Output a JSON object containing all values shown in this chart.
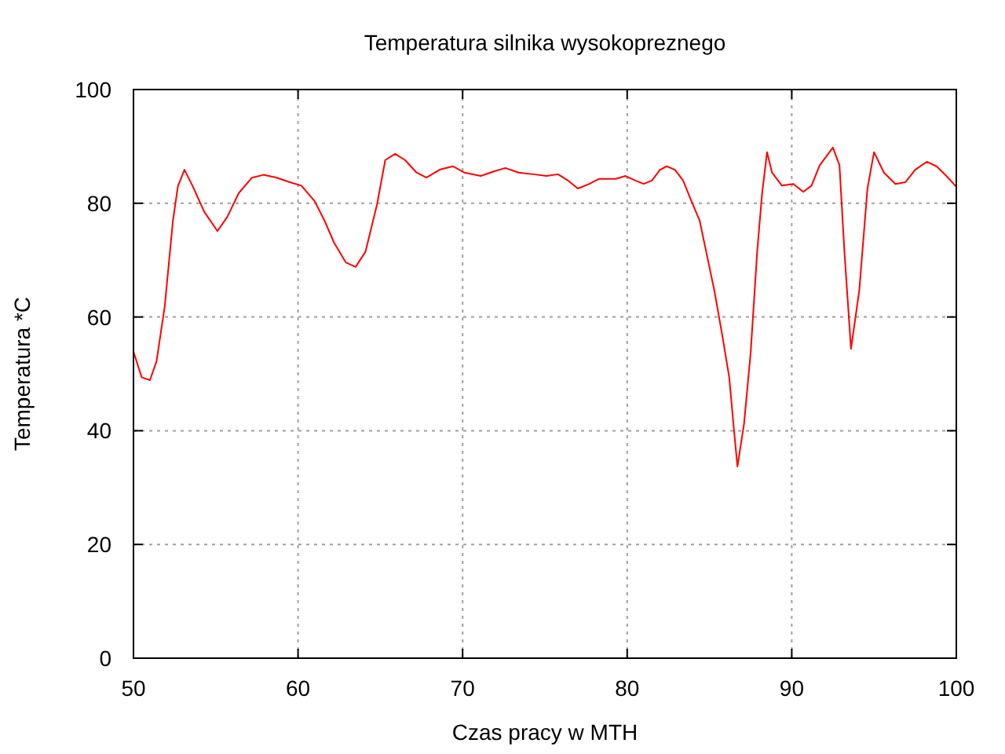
{
  "chart_data": {
    "type": "line",
    "title": "Temperatura silnika wysokopreznego",
    "xlabel": "Czas pracy w MTH",
    "ylabel": "Temperatura *C",
    "xlim": [
      50,
      100
    ],
    "xticks": [
      50,
      60,
      70,
      80,
      90,
      100
    ],
    "ylim": [
      0,
      100
    ],
    "yticks": [
      0,
      20,
      40,
      60,
      80,
      100
    ],
    "grid": true,
    "line_style": "solid",
    "marker": "none",
    "series": [
      {
        "color": "#ff0000",
        "x": [
          50,
          50.5,
          51,
          51.4,
          51.9,
          52.4,
          52.7,
          53.1,
          53.6,
          54.3,
          55.1,
          55.7,
          56.4,
          57.2,
          57.9,
          58.7,
          59.5,
          60.2,
          61,
          61.6,
          62.2,
          62.9,
          63.5,
          64.1,
          64.8,
          65.3,
          65.9,
          66.5,
          67.2,
          67.8,
          68.6,
          69.4,
          70.1,
          71.1,
          71.9,
          72.6,
          73.4,
          74.3,
          75.1,
          75.8,
          76.4,
          77,
          77.7,
          78.3,
          79.3,
          79.9,
          80.5,
          81,
          81.5,
          82,
          82.4,
          82.9,
          83.4,
          83.9,
          84.4,
          84.8,
          85.3,
          85.8,
          86.2,
          86.5,
          86.7,
          87.1,
          87.5,
          87.9,
          88.2,
          88.5,
          88.8,
          89.4,
          90.1,
          90.7,
          91.2,
          91.7,
          92.5,
          92.9,
          93.2,
          93.6,
          94.1,
          94.6,
          95,
          95.6,
          96.3,
          96.9,
          97.5,
          98.2,
          98.8,
          99.4,
          100
        ],
        "values": [
          53.9,
          49.4,
          48.9,
          52.2,
          61.9,
          77,
          83,
          85.9,
          83,
          78.5,
          75.1,
          77.6,
          81.8,
          84.5,
          85,
          84.5,
          83.7,
          83.1,
          80.4,
          77,
          73,
          69.6,
          68.8,
          71.5,
          79.8,
          87.6,
          88.7,
          87.6,
          85.4,
          84.5,
          85.9,
          86.5,
          85.4,
          84.8,
          85.6,
          86.2,
          85.4,
          85.1,
          84.8,
          85.1,
          84,
          82.6,
          83.4,
          84.3,
          84.3,
          84.8,
          84,
          83.4,
          84,
          85.9,
          86.5,
          85.9,
          84,
          80.4,
          77,
          71.5,
          64.6,
          56.4,
          49.4,
          39.8,
          33.7,
          41.2,
          53.6,
          71.5,
          81.8,
          89,
          85.4,
          83.1,
          83.4,
          82,
          83.1,
          86.7,
          89.8,
          86.7,
          71.5,
          54.4,
          64.6,
          82.6,
          89,
          85.4,
          83.4,
          83.7,
          85.9,
          87.3,
          86.5,
          84.8,
          82.9
        ]
      }
    ]
  }
}
